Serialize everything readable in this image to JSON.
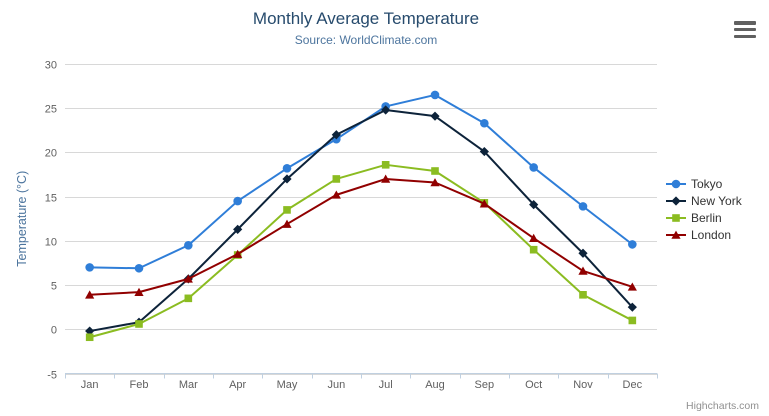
{
  "chart": {
    "title": "Monthly Average Temperature",
    "subtitle": "Source: WorldClimate.com",
    "credits": "Highcharts.com",
    "context_menu_icon": "hamburger-icon"
  },
  "colors": {
    "title": "#274b6d",
    "subtitle": "#4d759e",
    "axis_title": "#4d759e",
    "axis_labels": "#606060",
    "gridline": "#d8d8d8",
    "axis_line": "#c0d0e0",
    "legend_text": "#333333",
    "credits_text": "#909090",
    "background": "#ffffff"
  },
  "chart_data": {
    "type": "line",
    "title": "Monthly Average Temperature",
    "subtitle": "Source: WorldClimate.com",
    "xlabel": "",
    "ylabel": "Temperature (°C)",
    "ylim": [
      -5,
      30
    ],
    "y_tick_step": 5,
    "y_tick_labels": [
      "-5",
      "0",
      "5",
      "10",
      "15",
      "20",
      "25",
      "30"
    ],
    "grid": true,
    "legend_position": "right",
    "categories": [
      "Jan",
      "Feb",
      "Mar",
      "Apr",
      "May",
      "Jun",
      "Jul",
      "Aug",
      "Sep",
      "Oct",
      "Nov",
      "Dec"
    ],
    "series": [
      {
        "name": "Tokyo",
        "color": "#2f7ed8",
        "marker": "circle",
        "values": [
          7.0,
          6.9,
          9.5,
          14.5,
          18.2,
          21.5,
          25.2,
          26.5,
          23.3,
          18.3,
          13.9,
          9.6
        ]
      },
      {
        "name": "New York",
        "color": "#0d233a",
        "marker": "diamond",
        "values": [
          -0.2,
          0.8,
          5.7,
          11.3,
          17.0,
          22.0,
          24.8,
          24.1,
          20.1,
          14.1,
          8.6,
          2.5
        ]
      },
      {
        "name": "Berlin",
        "color": "#8bbc21",
        "marker": "square",
        "values": [
          -0.9,
          0.6,
          3.5,
          8.4,
          13.5,
          17.0,
          18.6,
          17.9,
          14.3,
          9.0,
          3.9,
          1.0
        ]
      },
      {
        "name": "London",
        "color": "#910000",
        "marker": "triangle",
        "values": [
          3.9,
          4.2,
          5.7,
          8.5,
          11.9,
          15.2,
          17.0,
          16.6,
          14.2,
          10.3,
          6.6,
          4.8
        ]
      }
    ]
  }
}
